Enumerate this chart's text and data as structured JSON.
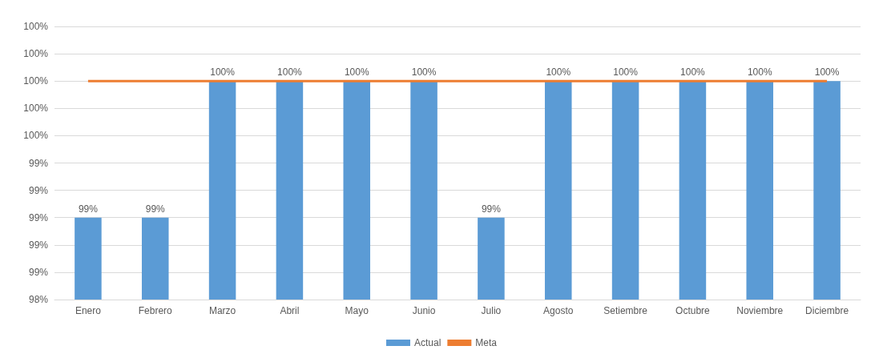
{
  "chart_data": {
    "type": "bar",
    "categories": [
      "Enero",
      "Febrero",
      "Marzo",
      "Abril",
      "Mayo",
      "Junio",
      "Julio",
      "Agosto",
      "Setiembre",
      "Octubre",
      "Noviembre",
      "Diciembre"
    ],
    "series": [
      {
        "name": "Actual",
        "color": "#5b9bd5",
        "values": [
          99,
          99,
          100,
          100,
          100,
          100,
          99,
          100,
          100,
          100,
          100,
          100
        ],
        "value_labels": [
          "99%",
          "99%",
          "100%",
          "100%",
          "100%",
          "100%",
          "99%",
          "100%",
          "100%",
          "100%",
          "100%",
          "100%"
        ]
      },
      {
        "name": "Meta",
        "type": "line",
        "color": "#ed7d31",
        "values": [
          100,
          100,
          100,
          100,
          100,
          100,
          100,
          100,
          100,
          100,
          100,
          100
        ]
      }
    ],
    "ylim": [
      98.4,
      100.4
    ],
    "yticks": [
      {
        "value": 98.4,
        "label": "98%"
      },
      {
        "value": 98.6,
        "label": "99%"
      },
      {
        "value": 98.8,
        "label": "99%"
      },
      {
        "value": 99.0,
        "label": "99%"
      },
      {
        "value": 99.2,
        "label": "99%"
      },
      {
        "value": 99.4,
        "label": "99%"
      },
      {
        "value": 99.6,
        "label": "100%"
      },
      {
        "value": 99.8,
        "label": "100%"
      },
      {
        "value": 100.0,
        "label": "100%"
      },
      {
        "value": 100.2,
        "label": "100%"
      },
      {
        "value": 100.4,
        "label": "100%"
      }
    ],
    "grid": "y",
    "legend": "bottom",
    "marker": "none",
    "line_style": "solid"
  }
}
